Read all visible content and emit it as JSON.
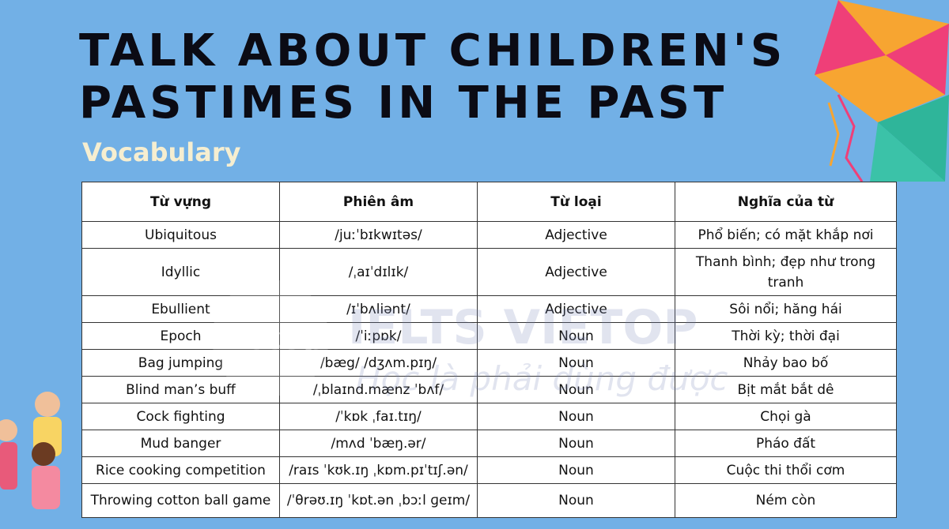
{
  "header": {
    "title": [
      "TALK ABOUT CHILDREN'S",
      "PASTIMES IN THE PAST"
    ],
    "subtitle": "Vocabulary"
  },
  "table": {
    "header": [
      "Từ vựng",
      "Phiên âm",
      "Từ loại",
      "Nghĩa của từ"
    ],
    "rows": [
      [
        "Ubiquitous",
        "/juːˈbɪkwɪtəs/",
        "Adjective",
        "Phổ biến; có mặt khắp nơi"
      ],
      [
        "Idyllic",
        "/ˌaɪˈdɪlɪk/",
        "Adjective",
        "Thanh bình; đẹp như trong tranh"
      ],
      [
        "Ebullient",
        "/ɪˈbʌliənt/",
        "Adjective",
        "Sôi nổi; hăng hái"
      ],
      [
        "Epoch",
        "/ˈiːpɒk/",
        "Noun",
        "Thời kỳ; thời đại"
      ],
      [
        "Bag jumping",
        "/bæg/ /dʒʌm.pɪŋ/",
        "Noun",
        "Nhảy bao bố"
      ],
      [
        "Blind man’s buff",
        "/ˌblaɪnd.mænz ˈbʌf/",
        "Noun",
        "Bịt mắt bắt dê"
      ],
      [
        "Cock fighting",
        "/ˈkɒk ˌfaɪ.tɪŋ/",
        "Noun",
        "Chọi gà"
      ],
      [
        "Mud banger",
        "/mʌd ˈbæŋ.ər/",
        "Noun",
        "Pháo đất"
      ],
      [
        "Rice cooking competition",
        "/raɪs ˈkʊk.ɪŋ ˌkɒm.pɪˈtɪʃ.ən/",
        "Noun",
        "Cuộc thi thổi cơm"
      ],
      [
        "Throwing cotton ball game",
        "/ˈθrəʊ.ɪŋ ˈkɒt.ən ˌbɔːl ɡeɪm/",
        "Noun",
        "Ném còn"
      ]
    ]
  },
  "watermark": {
    "logo": "Vietop",
    "brand": "IELTS VIETOP",
    "slogan": "Học là phải dùng được"
  }
}
